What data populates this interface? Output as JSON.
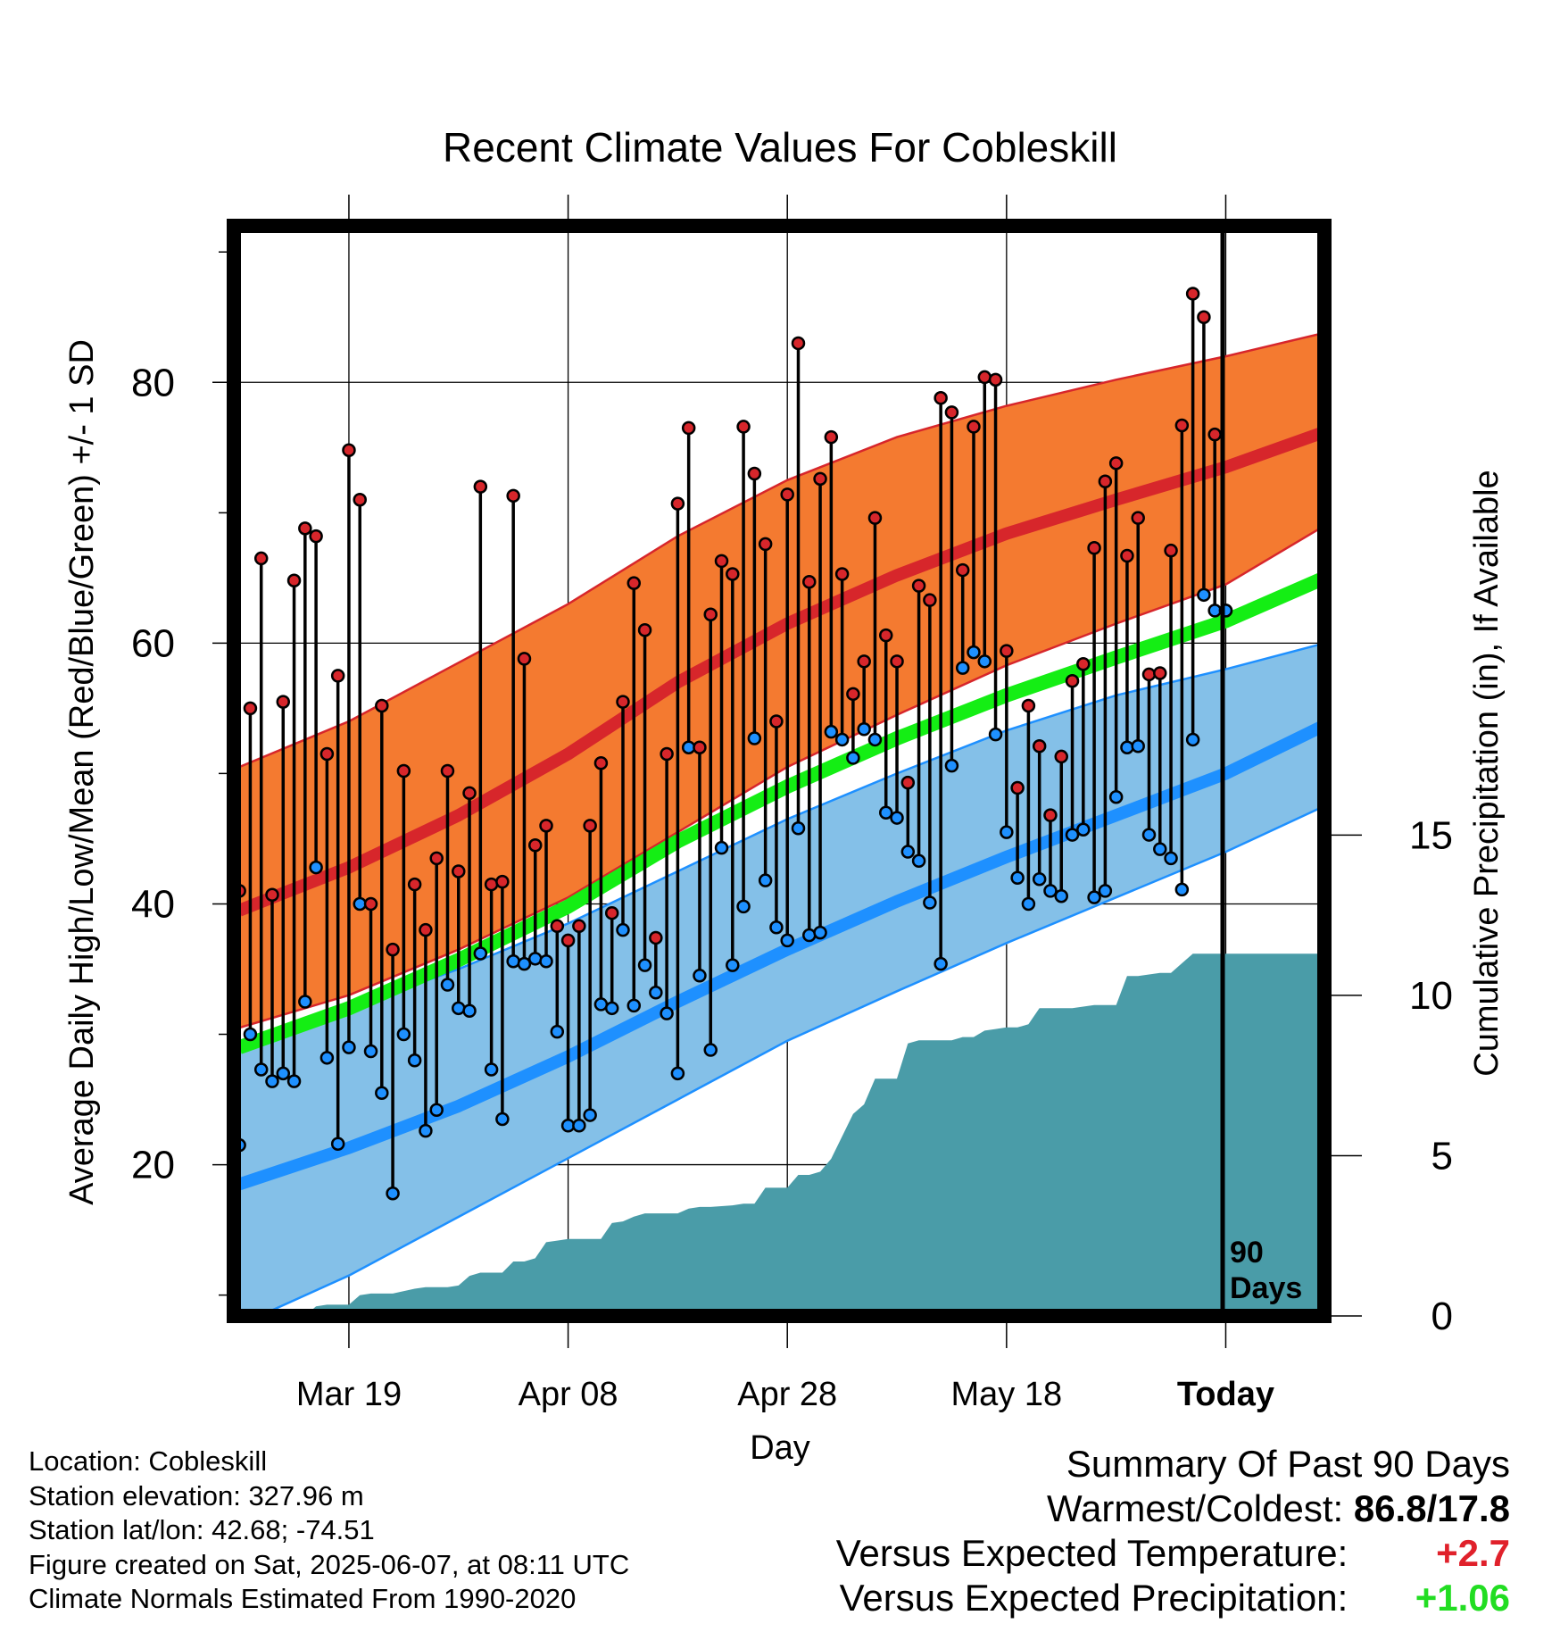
{
  "chart_data": {
    "type": "line",
    "title": "Recent Climate Values For Cobleskill",
    "xlabel": "Day",
    "ylabel": "Average Daily High/Low/Mean (Red/Blue/Green) +/- 1 SD",
    "y2label": "Cumulative Precipitation (in), If Available",
    "x_tick_labels": [
      "Mar 19",
      "Apr 08",
      "Apr 28",
      "May 18",
      "Today"
    ],
    "x_tick_days": [
      10,
      30,
      50,
      70,
      90
    ],
    "x_range_days": [
      -0.5,
      99
    ],
    "ylim": [
      8.4,
      92
    ],
    "y_ticks": [
      20,
      40,
      60,
      80
    ],
    "y2lim": [
      0,
      34
    ],
    "y2_ticks": [
      0,
      5,
      10,
      15
    ],
    "grid": true,
    "window_marker": {
      "day": 90,
      "label_line1": "90",
      "label_line2": "Days"
    },
    "colors": {
      "high_band": "#f47a30",
      "high_line": "#d7262b",
      "low_band": "#84c0e8",
      "low_line": "#1e90ff",
      "mean_line": "#14ee14",
      "precip": "#4a9ca8",
      "high_point": "#d7262b",
      "low_point": "#1e90ff"
    },
    "normals": {
      "days": [
        0,
        10,
        20,
        30,
        40,
        50,
        60,
        70,
        80,
        90,
        99
      ],
      "high_mean": [
        39.5,
        42.8,
        46.8,
        51.5,
        57,
        61.5,
        65.2,
        68.4,
        71,
        73.5,
        76.2
      ],
      "high_upper": [
        50.5,
        54,
        58.5,
        63,
        68.2,
        72.5,
        75.8,
        78.2,
        80.2,
        82,
        83.8
      ],
      "high_lower": [
        30.5,
        33,
        36.5,
        40.5,
        45.5,
        50.5,
        54.5,
        58.3,
        61.5,
        64.5,
        69
      ],
      "low_mean": [
        18.5,
        21.3,
        24.5,
        28.3,
        32.5,
        36.5,
        40.2,
        43.6,
        46.8,
        50,
        53.7
      ],
      "low_upper": [
        29,
        32,
        35,
        38.5,
        42.5,
        46.5,
        50,
        53.3,
        56,
        58,
        60
      ],
      "low_lower": [
        7.7,
        11.5,
        16,
        20.5,
        25,
        29.5,
        33.3,
        37,
        40.5,
        44,
        47.5
      ],
      "avg_mean": [
        29,
        32,
        35.7,
        39.8,
        44.8,
        49,
        52.7,
        56,
        58.9,
        61.7,
        65
      ]
    },
    "daily": {
      "days": [
        0,
        1,
        2,
        3,
        4,
        5,
        6,
        7,
        8,
        9,
        10,
        11,
        12,
        13,
        14,
        15,
        16,
        17,
        18,
        19,
        20,
        21,
        22,
        23,
        24,
        25,
        26,
        27,
        28,
        29,
        30,
        31,
        32,
        33,
        34,
        35,
        36,
        37,
        38,
        39,
        40,
        41,
        42,
        43,
        44,
        45,
        46,
        47,
        48,
        49,
        50,
        51,
        52,
        53,
        54,
        55,
        56,
        57,
        58,
        59,
        60,
        61,
        62,
        63,
        64,
        65,
        66,
        67,
        68,
        69,
        70,
        71,
        72,
        73,
        74,
        75,
        76,
        77,
        78,
        79,
        80,
        81,
        82,
        83,
        84,
        85,
        86,
        87,
        88,
        89,
        90
      ],
      "high": [
        41,
        55,
        66.5,
        40.7,
        55.5,
        64.8,
        68.8,
        68.2,
        51.5,
        57.5,
        74.8,
        71,
        40,
        55.2,
        36.5,
        50.2,
        41.5,
        38,
        43.5,
        50.2,
        42.5,
        48.5,
        72,
        41.5,
        41.7,
        71.3,
        58.8,
        44.5,
        46,
        38.3,
        37.2,
        38.3,
        46,
        50.8,
        39.3,
        55.5,
        64.6,
        61,
        37.4,
        51.5,
        70.7,
        76.5,
        52,
        62.2,
        66.3,
        65.3,
        76.6,
        73,
        67.6,
        54,
        71.4,
        83,
        64.7,
        72.6,
        75.8,
        65.3,
        56.1,
        58.6,
        69.6,
        60.6,
        58.6,
        49.3,
        64.4,
        63.3,
        78.8,
        77.7,
        65.6,
        76.6,
        80.4,
        80.2,
        59.4,
        48.9,
        55.2,
        52.1,
        46.8,
        51.3,
        57.1,
        58.4,
        67.3,
        72.4,
        73.8,
        66.7,
        69.6,
        57.6,
        57.7,
        67.1,
        76.7,
        86.8,
        85,
        76,
        62.5
      ],
      "low": [
        21.5,
        30,
        27.3,
        26.4,
        27,
        26.4,
        32.5,
        42.8,
        28.2,
        21.6,
        29,
        40,
        28.7,
        25.5,
        17.8,
        30,
        28,
        22.6,
        24.2,
        33.8,
        32,
        31.8,
        36.2,
        27.3,
        23.5,
        35.6,
        35.4,
        35.8,
        35.6,
        30.2,
        23,
        23,
        23.8,
        32.3,
        32,
        38,
        32.2,
        35.3,
        33.2,
        31.6,
        27,
        52,
        34.5,
        28.8,
        44.3,
        35.3,
        39.8,
        52.7,
        41.8,
        38.2,
        37.2,
        45.8,
        37.6,
        37.8,
        53.2,
        52.6,
        51.2,
        53.4,
        52.6,
        47,
        46.6,
        44,
        43.3,
        40.1,
        35.4,
        50.6,
        58.1,
        59.3,
        58.6,
        53,
        45.5,
        42,
        40,
        41.9,
        41,
        40.6,
        45.3,
        45.7,
        40.5,
        41,
        48.2,
        52,
        52.1,
        45.3,
        44.2,
        43.5,
        41.1,
        52.6,
        63.7,
        62.5,
        62.5
      ]
    },
    "precip_cumulative": {
      "days": [
        0,
        6,
        7,
        8,
        9,
        10,
        11,
        12,
        13,
        14,
        16,
        17,
        18,
        19,
        20,
        21,
        22,
        23,
        24,
        25,
        26,
        27,
        28,
        29,
        30,
        33,
        34,
        35,
        36,
        37,
        38,
        40,
        41,
        42,
        43,
        45,
        46,
        47,
        48,
        49,
        50,
        51,
        52,
        53,
        54,
        55,
        56,
        57,
        58,
        59,
        60,
        61,
        62,
        63,
        64,
        65,
        66,
        67,
        68,
        69,
        70,
        71,
        72,
        73,
        74,
        75,
        76,
        77,
        78,
        79,
        80,
        81,
        82,
        83,
        84,
        85,
        86,
        87,
        88,
        89,
        90,
        99
      ],
      "values": [
        0,
        0,
        0.3,
        0.35,
        0.35,
        0.35,
        0.65,
        0.7,
        0.7,
        0.7,
        0.85,
        0.9,
        0.9,
        0.9,
        0.95,
        1.25,
        1.35,
        1.35,
        1.35,
        1.7,
        1.7,
        1.8,
        2.3,
        2.35,
        2.4,
        2.4,
        2.9,
        2.95,
        3.1,
        3.2,
        3.2,
        3.2,
        3.35,
        3.4,
        3.4,
        3.45,
        3.5,
        3.5,
        4,
        4,
        4,
        4.4,
        4.4,
        4.5,
        4.9,
        5.6,
        6.3,
        6.6,
        7.4,
        7.4,
        7.4,
        8.5,
        8.6,
        8.6,
        8.6,
        8.6,
        8.7,
        8.7,
        8.9,
        8.95,
        9,
        9.0,
        9.1,
        9.6,
        9.6,
        9.6,
        9.6,
        9.65,
        9.7,
        9.7,
        9.7,
        10.6,
        10.6,
        10.65,
        10.7,
        10.7,
        11.0,
        11.3,
        11.3,
        11.3,
        11.3,
        11.3
      ]
    }
  },
  "info": {
    "location": "Location: Cobleskill",
    "elevation": "Station elevation: 327.96 m",
    "latlon": "Station lat/lon: 42.68; -74.51",
    "created": "Figure created on Sat, 2025-06-07, at 08:11 UTC",
    "normals": "Climate Normals Estimated From 1990-2020"
  },
  "summary": {
    "title": "Summary Of Past 90 Days",
    "warm_cold_label": "Warmest/Coldest:",
    "warm_cold_value": "86.8/17.8",
    "temp_label": "Versus Expected Temperature:",
    "temp_value": "+2.7",
    "precip_label": "Versus Expected Precipitation:",
    "precip_value": "+1.06"
  }
}
